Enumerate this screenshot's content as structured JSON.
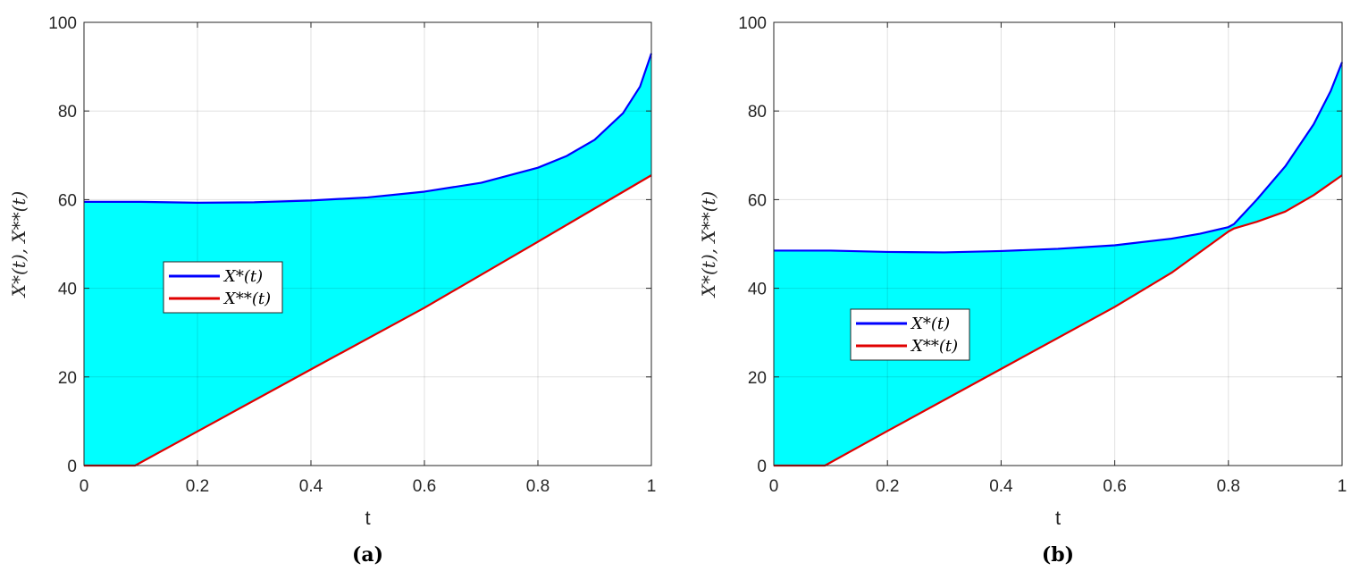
{
  "chart_data": [
    {
      "type": "area",
      "caption": "(a)",
      "xlabel": "t",
      "ylabel": "X*(t), X**(t)",
      "xlim": [
        0,
        1
      ],
      "ylim": [
        0,
        100
      ],
      "xticks": [
        "0",
        "0.2",
        "0.4",
        "0.6",
        "0.8",
        "1"
      ],
      "yticks": [
        "0",
        "20",
        "40",
        "60",
        "80",
        "100"
      ],
      "grid": true,
      "fill_color": "#00ffff",
      "legend": {
        "placement": "center-left"
      },
      "series": [
        {
          "name": "X*(t)",
          "color": "#0000ff",
          "x": [
            0,
            0.05,
            0.1,
            0.2,
            0.3,
            0.4,
            0.5,
            0.6,
            0.7,
            0.8,
            0.85,
            0.9,
            0.95,
            0.98,
            1.0
          ],
          "y": [
            59.5,
            59.5,
            59.5,
            59.3,
            59.4,
            59.8,
            60.5,
            61.8,
            63.8,
            67.2,
            69.8,
            73.5,
            79.5,
            85.5,
            93.0
          ]
        },
        {
          "name": "X**(t)",
          "color": "#e00000",
          "x": [
            0,
            0.09,
            0.2,
            0.4,
            0.6,
            0.8,
            1.0
          ],
          "y": [
            0,
            0,
            7.7,
            21.7,
            35.6,
            50.5,
            65.5
          ]
        }
      ]
    },
    {
      "type": "area",
      "caption": "(b)",
      "xlabel": "t",
      "ylabel": "X*(t), X**(t)",
      "xlim": [
        0,
        1
      ],
      "ylim": [
        0,
        100
      ],
      "xticks": [
        "0",
        "0.2",
        "0.4",
        "0.6",
        "0.8",
        "1"
      ],
      "yticks": [
        "0",
        "20",
        "40",
        "60",
        "80",
        "100"
      ],
      "grid": true,
      "fill_color": "#00ffff",
      "legend": {
        "placement": "center-left"
      },
      "series": [
        {
          "name": "X*(t)",
          "color": "#0000ff",
          "x": [
            0,
            0.05,
            0.1,
            0.2,
            0.3,
            0.4,
            0.5,
            0.6,
            0.7,
            0.75,
            0.8,
            0.81,
            0.85,
            0.9,
            0.95,
            0.98,
            1.0
          ],
          "y": [
            48.5,
            48.5,
            48.5,
            48.2,
            48.1,
            48.4,
            48.9,
            49.7,
            51.2,
            52.3,
            53.8,
            54.5,
            60.0,
            67.5,
            77.0,
            84.5,
            91.0
          ]
        },
        {
          "name": "X**(t)",
          "color": "#e00000",
          "x": [
            0,
            0.09,
            0.2,
            0.4,
            0.6,
            0.7,
            0.8,
            0.81,
            0.85,
            0.9,
            0.95,
            1.0
          ],
          "y": [
            0,
            0,
            7.8,
            21.8,
            35.8,
            43.5,
            52.8,
            53.5,
            55.0,
            57.3,
            61.0,
            65.5
          ]
        }
      ]
    }
  ]
}
